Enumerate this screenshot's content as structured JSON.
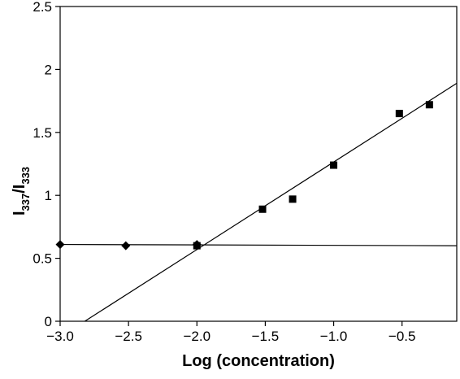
{
  "chart_data": {
    "type": "scatter",
    "xlabel": "Log (concentration)",
    "ylabel": {
      "main": "I",
      "sub1": "337",
      "slash": "/I",
      "sub2": "333"
    },
    "xlim": [
      -3.0,
      -0.1
    ],
    "ylim": [
      0,
      2.5
    ],
    "x_ticks": [
      -3.0,
      -2.5,
      -2.0,
      -1.5,
      -1.0,
      -0.5
    ],
    "x_tick_labels": [
      "−3.0",
      "−2.5",
      "−2.0",
      "−1.5",
      "−1.0",
      "−0.5"
    ],
    "y_ticks": [
      0,
      0.5,
      1,
      1.5,
      2,
      2.5
    ],
    "y_tick_labels": [
      "0",
      "0.5",
      "1",
      "1.5",
      "2",
      "2.5"
    ],
    "grid": false,
    "series": [
      {
        "marker": "diamond",
        "color": "#000000",
        "points": [
          {
            "x": -3.0,
            "y": 0.61
          },
          {
            "x": -2.52,
            "y": 0.6
          },
          {
            "x": -2.0,
            "y": 0.61
          }
        ]
      },
      {
        "marker": "square",
        "color": "#000000",
        "points": [
          {
            "x": -2.0,
            "y": 0.6
          },
          {
            "x": -1.52,
            "y": 0.89
          },
          {
            "x": -1.3,
            "y": 0.97
          },
          {
            "x": -1.0,
            "y": 1.24
          },
          {
            "x": -0.52,
            "y": 1.65
          },
          {
            "x": -0.3,
            "y": 1.72
          }
        ]
      }
    ],
    "fit_lines": [
      {
        "x1": -3.0,
        "y1": 0.61,
        "x2": -0.1,
        "y2": 0.6
      },
      {
        "x1": -2.82,
        "y1": 0.0,
        "x2": -0.1,
        "y2": 1.89
      }
    ]
  }
}
